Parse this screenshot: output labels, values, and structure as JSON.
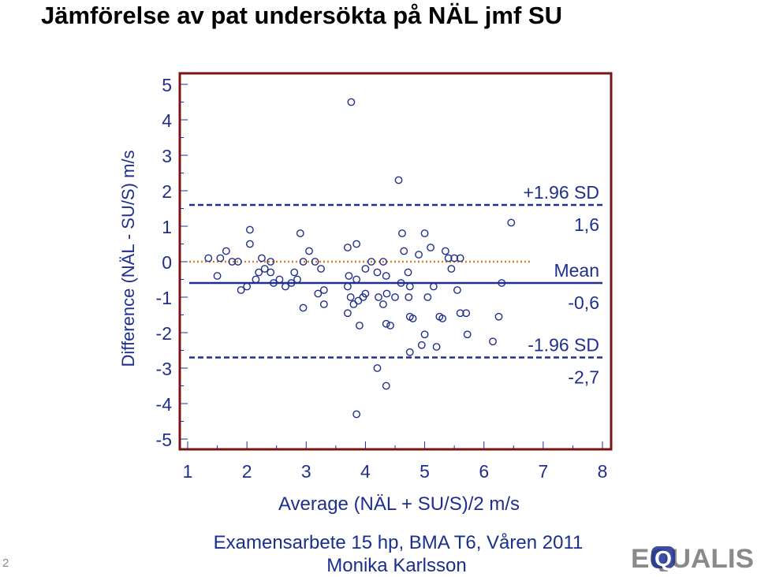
{
  "slide": {
    "title": "Jämförelse av pat undersökta på NÄL jmf SU",
    "footer_line1": "Examensarbete 15 hp, BMA T6, Våren 2011",
    "footer_line2": "Monika Karlsson",
    "page_number": "2",
    "logo_text": "EQUALIS"
  },
  "colors": {
    "frame": "#7a1414",
    "mean_line": "#1f2f8f",
    "zero_line": "#e08020",
    "sd_line": "#1f2f8f",
    "points": "#1f2f8f",
    "labels": "#1f2f8f"
  },
  "chart_data": {
    "type": "scatter",
    "title": "",
    "xlabel": "Average (NÄL + SU/S)/2 m/s",
    "ylabel": "Difference (NÄL - SU/S) m/s",
    "xlim": [
      1,
      8
    ],
    "ylim": [
      -5,
      5
    ],
    "x_ticks": [
      "1",
      "2",
      "3",
      "4",
      "5",
      "6",
      "7",
      "8"
    ],
    "y_ticks": [
      "5",
      "4",
      "3",
      "2",
      "1",
      "0",
      "-1",
      "-2",
      "-3",
      "-4",
      "-5"
    ],
    "grid": false,
    "reference_lines": [
      {
        "label": "+1.96 SD",
        "value_label": "1,6",
        "value": 1.6,
        "style": "dashed"
      },
      {
        "label": "Mean",
        "value_label": "-0,6",
        "value": -0.6,
        "style": "solid"
      },
      {
        "label": "-1.96 SD",
        "value_label": "-2,7",
        "value": -2.7,
        "style": "dashed"
      },
      {
        "label": "",
        "value_label": "",
        "value": 0,
        "style": "dotted"
      }
    ],
    "points": [
      [
        3.76,
        4.5
      ],
      [
        4.56,
        2.3
      ],
      [
        6.46,
        1.1
      ],
      [
        2.05,
        0.9
      ],
      [
        2.9,
        0.8
      ],
      [
        3.85,
        0.5
      ],
      [
        4.62,
        0.8
      ],
      [
        5.0,
        0.8
      ],
      [
        2.05,
        0.5
      ],
      [
        1.35,
        0.1
      ],
      [
        1.55,
        0.1
      ],
      [
        1.65,
        0.3
      ],
      [
        1.75,
        0.0
      ],
      [
        1.85,
        0.0
      ],
      [
        2.25,
        0.1
      ],
      [
        2.4,
        0.0
      ],
      [
        3.05,
        0.3
      ],
      [
        3.7,
        0.4
      ],
      [
        4.65,
        0.3
      ],
      [
        4.9,
        0.2
      ],
      [
        5.1,
        0.4
      ],
      [
        5.35,
        0.3
      ],
      [
        5.4,
        0.1
      ],
      [
        5.5,
        0.1
      ],
      [
        5.6,
        0.1
      ],
      [
        4.1,
        0.0
      ],
      [
        4.3,
        0.0
      ],
      [
        1.5,
        -0.4
      ],
      [
        1.9,
        -0.8
      ],
      [
        2.0,
        -0.7
      ],
      [
        2.15,
        -0.5
      ],
      [
        2.2,
        -0.3
      ],
      [
        2.3,
        -0.2
      ],
      [
        2.4,
        -0.3
      ],
      [
        2.45,
        -0.6
      ],
      [
        2.55,
        -0.5
      ],
      [
        2.65,
        -0.7
      ],
      [
        2.75,
        -0.6
      ],
      [
        2.8,
        -0.3
      ],
      [
        2.85,
        -0.5
      ],
      [
        2.95,
        -0.0
      ],
      [
        3.15,
        0.0
      ],
      [
        3.25,
        -0.2
      ],
      [
        3.3,
        -0.8
      ],
      [
        3.2,
        -0.9
      ],
      [
        3.72,
        -0.4
      ],
      [
        3.7,
        -0.7
      ],
      [
        3.85,
        -0.5
      ],
      [
        4.0,
        -0.2
      ],
      [
        4.2,
        -0.3
      ],
      [
        4.35,
        -0.4
      ],
      [
        4.6,
        -0.6
      ],
      [
        4.72,
        -0.3
      ],
      [
        4.75,
        -0.7
      ],
      [
        5.15,
        -0.7
      ],
      [
        5.45,
        -0.2
      ],
      [
        5.55,
        -0.8
      ],
      [
        6.3,
        -0.6
      ],
      [
        2.95,
        -1.3
      ],
      [
        3.3,
        -1.2
      ],
      [
        3.75,
        -1.0
      ],
      [
        3.8,
        -1.2
      ],
      [
        3.88,
        -1.1
      ],
      [
        3.96,
        -1.0
      ],
      [
        4.0,
        -0.9
      ],
      [
        4.22,
        -1.0
      ],
      [
        4.3,
        -1.2
      ],
      [
        4.36,
        -0.9
      ],
      [
        4.5,
        -1.0
      ],
      [
        4.73,
        -1.0
      ],
      [
        5.05,
        -1.0
      ],
      [
        3.7,
        -1.45
      ],
      [
        3.9,
        -1.8
      ],
      [
        4.35,
        -1.75
      ],
      [
        4.42,
        -1.8
      ],
      [
        4.75,
        -1.55
      ],
      [
        4.8,
        -1.6
      ],
      [
        5.25,
        -1.55
      ],
      [
        5.3,
        -1.6
      ],
      [
        5.6,
        -1.45
      ],
      [
        5.7,
        -1.45
      ],
      [
        6.25,
        -1.55
      ],
      [
        5.0,
        -2.05
      ],
      [
        5.72,
        -2.05
      ],
      [
        6.15,
        -2.25
      ],
      [
        4.75,
        -2.55
      ],
      [
        4.95,
        -2.35
      ],
      [
        5.2,
        -2.4
      ],
      [
        4.2,
        -3.0
      ],
      [
        4.35,
        -3.5
      ],
      [
        3.85,
        -4.3
      ]
    ]
  }
}
